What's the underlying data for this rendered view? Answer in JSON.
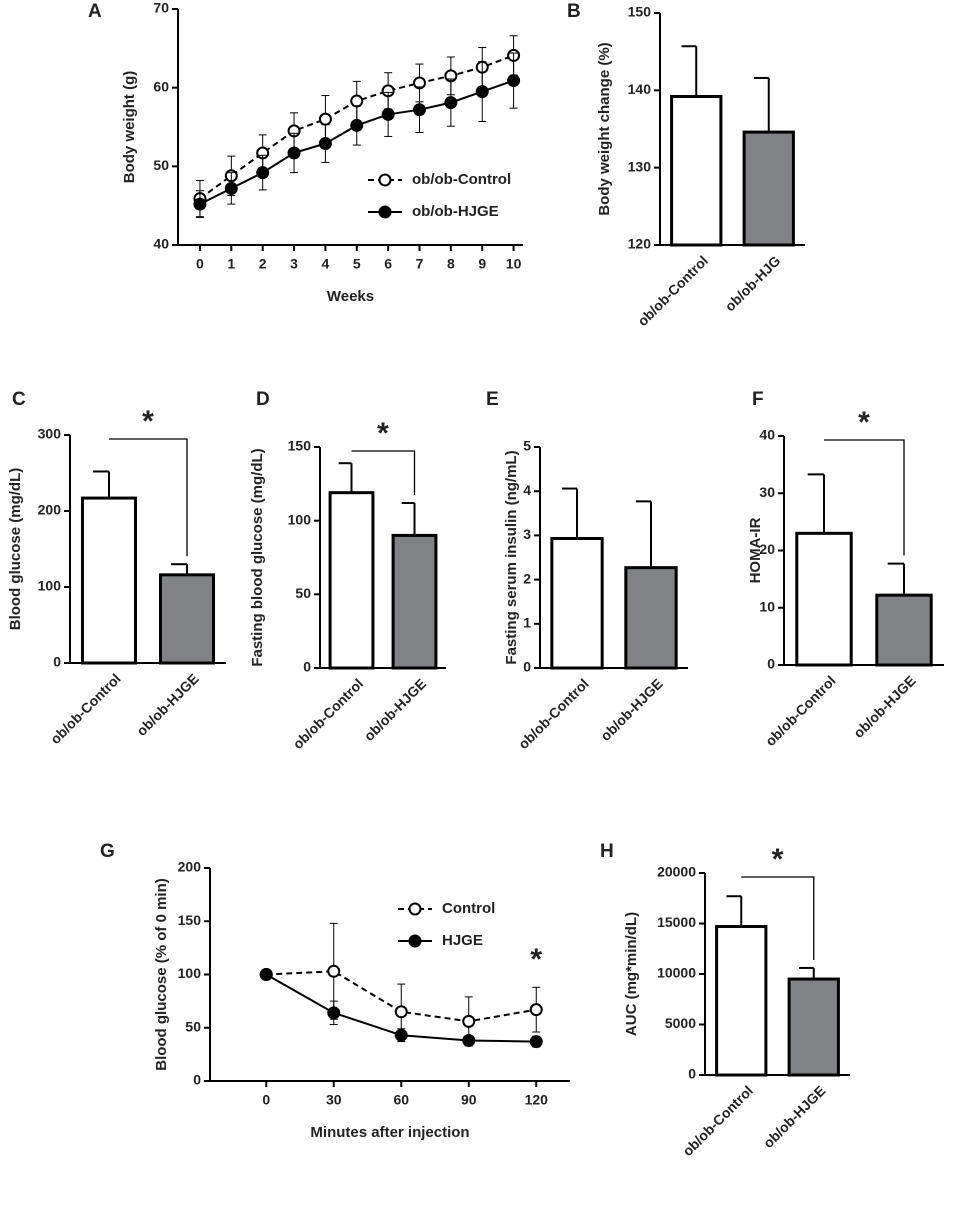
{
  "chart_data": [
    {
      "type": "line",
      "label": "A",
      "x_label": "Weeks",
      "y_label": "Body weight (g)",
      "x": [
        0,
        1,
        2,
        3,
        4,
        5,
        6,
        7,
        8,
        9,
        10
      ],
      "xlim": [
        -0.7,
        10.3
      ],
      "xticks": [
        0,
        1,
        2,
        3,
        4,
        5,
        6,
        7,
        8,
        9,
        10
      ],
      "ylim": [
        40,
        70
      ],
      "yticks": [
        40,
        50,
        60,
        70
      ],
      "series": [
        {
          "name": "ob/ob-Control",
          "color": "#000000",
          "marker": "open",
          "dashed": true,
          "values": [
            45.9,
            48.8,
            51.7,
            54.5,
            56.0,
            58.3,
            59.6,
            60.6,
            61.5,
            62.6,
            64.1
          ],
          "errors": [
            2.3,
            2.5,
            2.3,
            2.3,
            3.0,
            2.5,
            2.3,
            2.4,
            2.4,
            2.5,
            2.5
          ]
        },
        {
          "name": "ob/ob-HJGE",
          "color": "#000000",
          "marker": "filled",
          "dashed": false,
          "values": [
            45.2,
            47.2,
            49.2,
            51.7,
            52.9,
            55.2,
            56.6,
            57.2,
            58.1,
            59.5,
            60.9
          ],
          "errors": [
            1.7,
            2.0,
            2.2,
            2.5,
            2.4,
            2.5,
            2.8,
            2.9,
            3.0,
            3.8,
            3.5
          ]
        }
      ]
    },
    {
      "type": "bar",
      "label": "B",
      "y_label": "Body weight change (%)",
      "categories": [
        "ob/ob-Control",
        "ob/ob-HJG"
      ],
      "values": [
        139.2,
        134.6
      ],
      "errors": [
        6.5,
        7.0
      ],
      "colors": [
        "#ffffff",
        "#808285"
      ],
      "ylim": [
        120,
        150
      ],
      "yticks": [
        120,
        130,
        140,
        150
      ]
    },
    {
      "type": "bar",
      "label": "C",
      "y_label": "Blood glucose (mg/dL)",
      "annotation": "*",
      "categories": [
        "ob/ob-Control",
        "ob/ob-HJGE"
      ],
      "values": [
        217,
        116
      ],
      "errors": [
        35,
        14
      ],
      "colors": [
        "#ffffff",
        "#808285"
      ],
      "ylim": [
        0,
        300
      ],
      "yticks": [
        0,
        100,
        200,
        300
      ]
    },
    {
      "type": "bar",
      "label": "D",
      "y_label": "Fasting blood glucose (mg/dL)",
      "annotation": "*",
      "categories": [
        "ob/ob-Control",
        "ob/ob-HJGE"
      ],
      "values": [
        119,
        90
      ],
      "errors": [
        20,
        22
      ],
      "colors": [
        "#ffffff",
        "#808285"
      ],
      "ylim": [
        0,
        150
      ],
      "yticks": [
        0,
        50,
        100,
        150
      ]
    },
    {
      "type": "bar",
      "label": "E",
      "y_label": "Fasting serum insulin (ng/mL)",
      "categories": [
        "ob/ob-Control",
        "ob/ob-HJGE"
      ],
      "values": [
        2.93,
        2.27
      ],
      "errors": [
        1.13,
        1.5
      ],
      "colors": [
        "#ffffff",
        "#808285"
      ],
      "ylim": [
        0,
        5
      ],
      "yticks": [
        0,
        1,
        2,
        3,
        4,
        5
      ]
    },
    {
      "type": "bar",
      "label": "F",
      "y_label": "HOMA-IR",
      "annotation": "*",
      "categories": [
        "ob/ob-Control",
        "ob/ob-HJGE"
      ],
      "values": [
        23,
        12.2
      ],
      "errors": [
        10.3,
        5.5
      ],
      "colors": [
        "#ffffff",
        "#808285"
      ],
      "ylim": [
        0,
        40
      ],
      "yticks": [
        0,
        10,
        20,
        30,
        40
      ]
    },
    {
      "type": "line",
      "label": "G",
      "x_label": "Minutes after injection",
      "y_label": "Blood glucose (% of 0 min)",
      "annotation": "*",
      "x": [
        0,
        30,
        60,
        90,
        120
      ],
      "xlim": [
        -25,
        135
      ],
      "xticks": [
        0,
        30,
        60,
        90,
        120
      ],
      "ylim": [
        0,
        200
      ],
      "yticks": [
        0,
        50,
        100,
        150,
        200
      ],
      "series": [
        {
          "name": "Control",
          "color": "#000000",
          "marker": "open",
          "dashed": true,
          "values": [
            100,
            103,
            65,
            56,
            67
          ],
          "errors": [
            0,
            45,
            26,
            23,
            21
          ]
        },
        {
          "name": "HJGE",
          "color": "#000000",
          "marker": "filled",
          "dashed": false,
          "values": [
            100,
            64,
            43,
            38,
            37
          ],
          "errors": [
            0,
            11,
            6,
            4,
            5
          ]
        }
      ]
    },
    {
      "type": "bar",
      "label": "H",
      "y_label": "AUC (mg*min/dL)",
      "annotation": "*",
      "categories": [
        "ob/ob-Control",
        "ob/ob-HJGE"
      ],
      "values": [
        14700,
        9500
      ],
      "errors": [
        3000,
        1100
      ],
      "colors": [
        "#ffffff",
        "#808285"
      ],
      "ylim": [
        0,
        20000
      ],
      "yticks": [
        0,
        5000,
        10000,
        15000,
        20000
      ]
    }
  ]
}
